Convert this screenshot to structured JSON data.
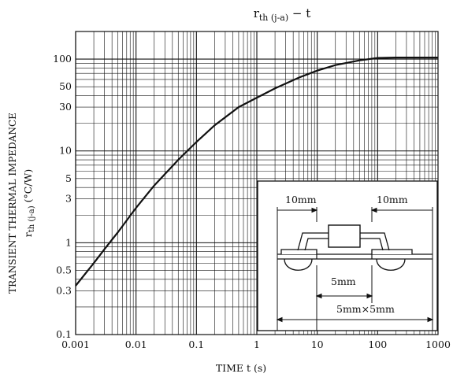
{
  "chart_data": {
    "type": "line",
    "title_main": "r",
    "title_sub": "th (j-a)",
    "title_rest": "  −  t",
    "xlabel": "TIME   t   (s)",
    "ylabel_line1": "TRANSIENT THERMAL IMPEDANCE",
    "ylabel_line2_main": "r",
    "ylabel_line2_sub": "th (j-a)",
    "ylabel_line2_unit": "   (°C/W)",
    "x_scale": "log",
    "y_scale": "log",
    "xlim": [
      0.001,
      1000
    ],
    "ylim": [
      0.1,
      200
    ],
    "grid": true,
    "x_ticks": [
      "0.001",
      "0.01",
      "0.1",
      "1",
      "10",
      "100",
      "1000"
    ],
    "y_ticks": [
      "0.1",
      "0.3",
      "0.5",
      "1",
      "3",
      "5",
      "10",
      "30",
      "50",
      "100"
    ],
    "series": [
      {
        "x": [
          0.001,
          0.002,
          0.003,
          0.005,
          0.01,
          0.02,
          0.05,
          0.1,
          0.2,
          0.5,
          1,
          2,
          5,
          10,
          20,
          50,
          100,
          200,
          500,
          1000
        ],
        "y": [
          0.34,
          0.6,
          0.85,
          1.3,
          2.4,
          4.2,
          8.0,
          12.5,
          19,
          30,
          38,
          48,
          63,
          75,
          86,
          97,
          103,
          104,
          104,
          104
        ]
      }
    ],
    "inset": {
      "label_left": "10mm",
      "label_right": "10mm",
      "label_inner": "5mm",
      "label_outer": "5mm×5mm"
    }
  }
}
